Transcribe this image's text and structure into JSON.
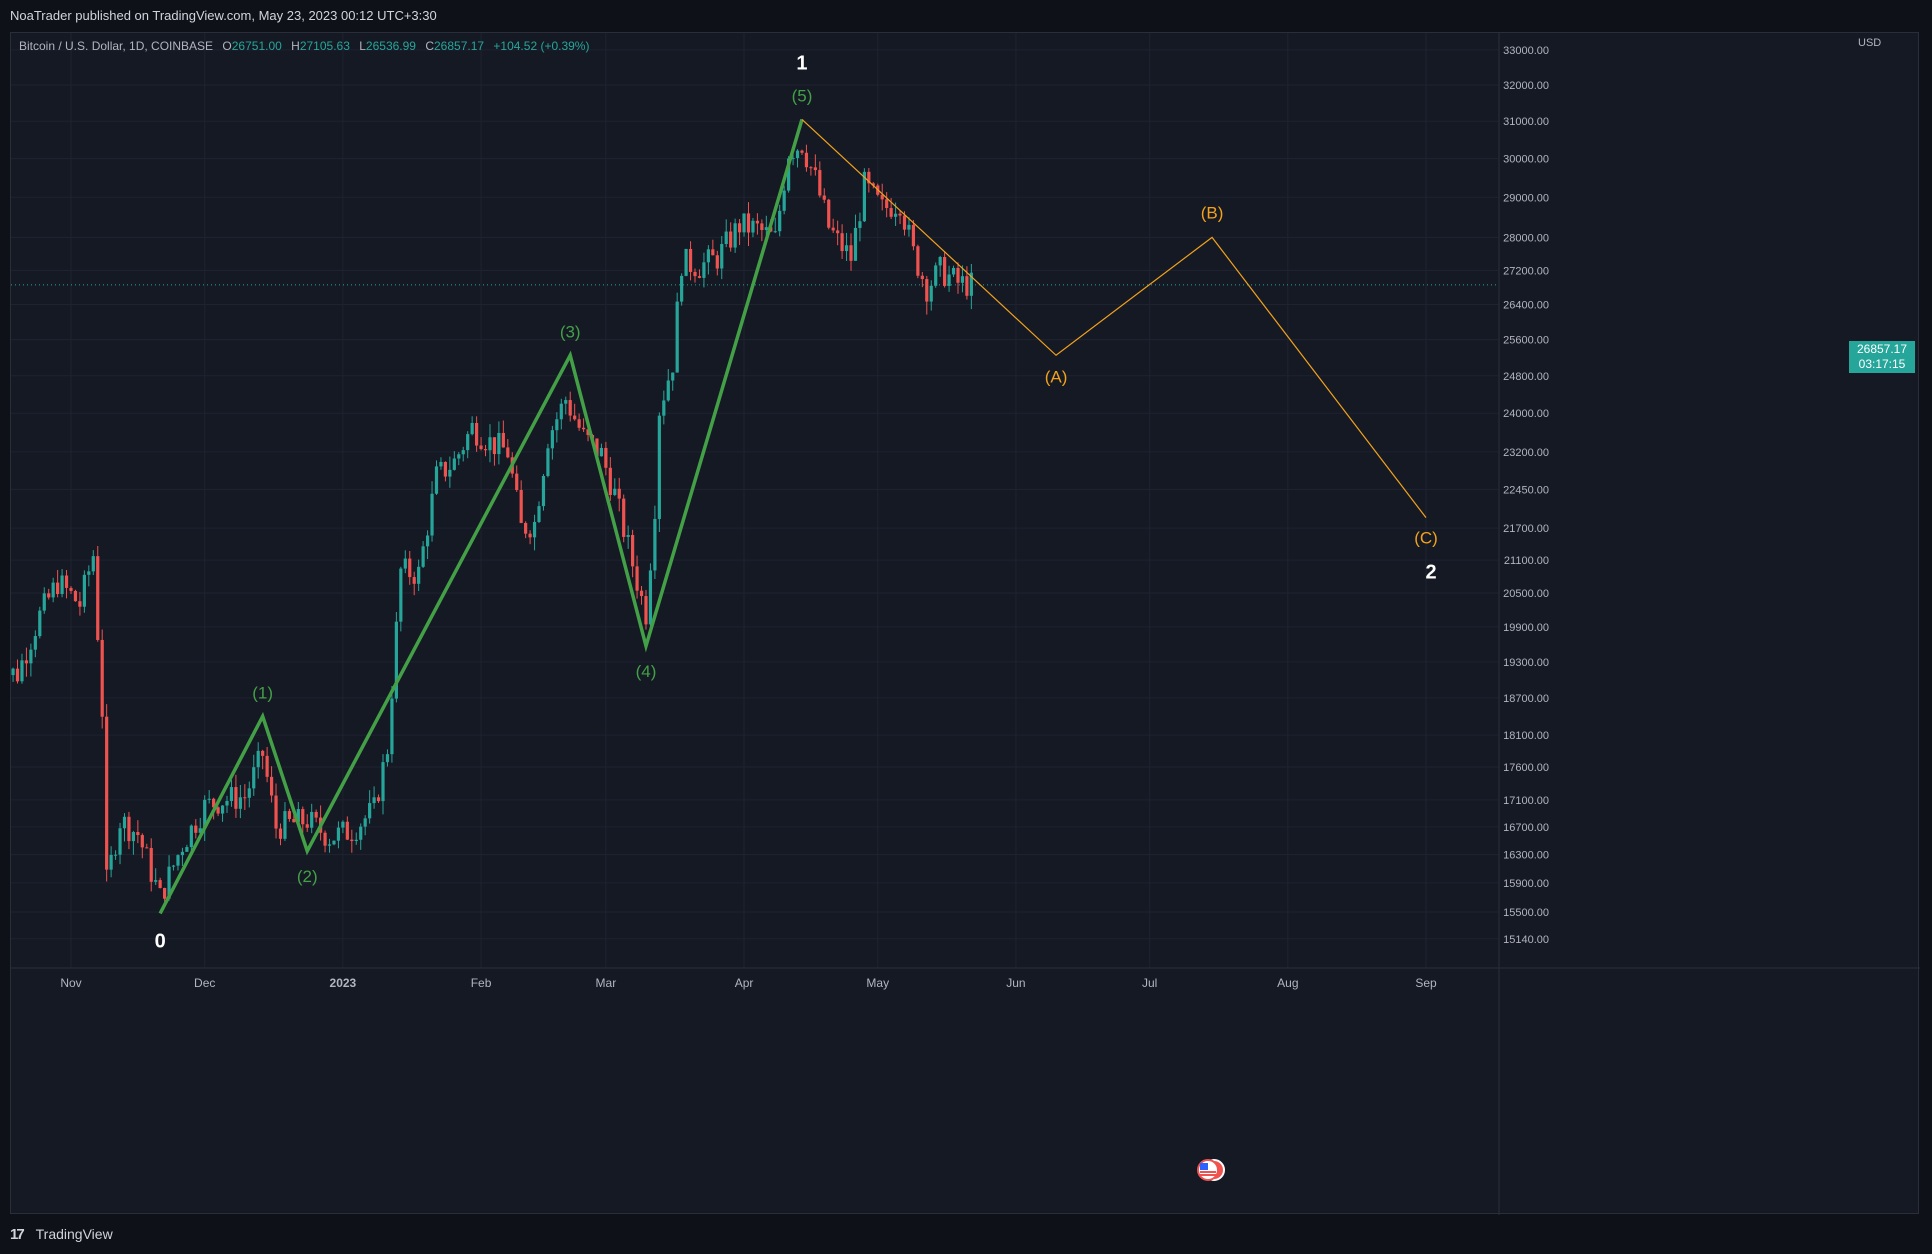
{
  "header": {
    "published": "NoaTrader published on TradingView.com, May 23, 2023 00:12 UTC+3:30"
  },
  "legend": {
    "symbol": "Bitcoin / U.S. Dollar, 1D, COINBASE",
    "o_key": "O",
    "o_val": "26751.00",
    "h_key": "H",
    "h_val": "27105.63",
    "l_key": "L",
    "l_val": "26536.99",
    "c_key": "C",
    "c_val": "26857.17",
    "change": "+104.52 (+0.39%)"
  },
  "price_axis": {
    "currency": "USD",
    "last_price": "26857.17",
    "countdown": "03:17:15"
  },
  "footer": {
    "brand": "TradingView",
    "logo_text": "17"
  },
  "colors": {
    "up": "#26a69a",
    "down": "#ef5350",
    "impulse": "#43a047",
    "correction": "#f2a21c",
    "background": "#151924"
  },
  "chart_data": {
    "type": "candlestick",
    "title": "Bitcoin / U.S. Dollar, 1D, COINBASE",
    "x_tick_labels": [
      "Nov",
      "Dec",
      "2023",
      "Feb",
      "Mar",
      "Apr",
      "May",
      "Jun",
      "Jul",
      "Aug",
      "Sep"
    ],
    "y_tick_labels": [
      "33000.00",
      "32000.00",
      "31000.00",
      "30000.00",
      "29000.00",
      "28000.00",
      "27200.00",
      "26400.00",
      "25600.00",
      "24800.00",
      "24000.00",
      "23200.00",
      "22450.00",
      "21700.00",
      "21100.00",
      "20500.00",
      "19900.00",
      "19300.00",
      "18700.00",
      "18100.00",
      "17600.00",
      "17100.00",
      "16700.00",
      "16300.00",
      "15900.00",
      "15500.00",
      "15140.00"
    ],
    "y_scale": "log",
    "ylim": [
      14900,
      33300
    ],
    "last_price": 26857.17,
    "impulse_waves": [
      {
        "label": "0",
        "date": "2022-11-21",
        "price": 15480
      },
      {
        "label": "(1)",
        "date": "2022-12-14",
        "price": 18400
      },
      {
        "label": "(2)",
        "date": "2022-12-24",
        "price": 16350
      },
      {
        "label": "(3)",
        "date": "2023-02-21",
        "price": 25250
      },
      {
        "label": "(4)",
        "date": "2023-03-10",
        "price": 19570
      },
      {
        "label": "(5)",
        "date": "2023-04-14",
        "price": 31050
      }
    ],
    "wave_degree_labels": [
      {
        "label": "0",
        "date": "2022-11-21"
      },
      {
        "label": "1",
        "date": "2023-04-14"
      },
      {
        "label": "2",
        "date": "2023-09-01"
      }
    ],
    "correction_projection": [
      {
        "label": "",
        "date": "2023-04-14",
        "price": 31050
      },
      {
        "label": "(A)",
        "date": "2023-06-10",
        "price": 25250
      },
      {
        "label": "(B)",
        "date": "2023-07-15",
        "price": 28000
      },
      {
        "label": "(C)",
        "date": "2023-09-01",
        "price": 21900
      }
    ],
    "close_path": [
      [
        "2022-10-15",
        19150
      ],
      [
        "2022-10-20",
        19100
      ],
      [
        "2022-10-25",
        20100
      ],
      [
        "2022-10-29",
        20700
      ],
      [
        "2022-11-03",
        20300
      ],
      [
        "2022-11-06",
        21200
      ],
      [
        "2022-11-08",
        18500
      ],
      [
        "2022-11-09",
        15900
      ],
      [
        "2022-11-12",
        16800
      ],
      [
        "2022-11-16",
        16600
      ],
      [
        "2022-11-21",
        15700
      ],
      [
        "2022-11-26",
        16450
      ],
      [
        "2022-12-01",
        17000
      ],
      [
        "2022-12-05",
        17100
      ],
      [
        "2022-12-10",
        17150
      ],
      [
        "2022-12-14",
        17800
      ],
      [
        "2022-12-17",
        16700
      ],
      [
        "2022-12-24",
        16800
      ],
      [
        "2022-12-29",
        16550
      ],
      [
        "2023-01-03",
        16650
      ],
      [
        "2023-01-08",
        16950
      ],
      [
        "2023-01-11",
        17900
      ],
      [
        "2023-01-14",
        20900
      ],
      [
        "2023-01-18",
        20850
      ],
      [
        "2023-01-22",
        22700
      ],
      [
        "2023-01-26",
        23000
      ],
      [
        "2023-01-30",
        23700
      ],
      [
        "2023-02-03",
        23400
      ],
      [
        "2023-02-07",
        23200
      ],
      [
        "2023-02-10",
        21700
      ],
      [
        "2023-02-13",
        21800
      ],
      [
        "2023-02-16",
        23500
      ],
      [
        "2023-02-20",
        24300
      ],
      [
        "2023-02-24",
        23500
      ],
      [
        "2023-02-28",
        23150
      ],
      [
        "2023-03-03",
        22350
      ],
      [
        "2023-03-09",
        20400
      ],
      [
        "2023-03-10",
        20150
      ],
      [
        "2023-03-12",
        22150
      ],
      [
        "2023-03-13",
        24100
      ],
      [
        "2023-03-16",
        25100
      ],
      [
        "2023-03-18",
        27400
      ],
      [
        "2023-03-22",
        27300
      ],
      [
        "2023-03-26",
        27500
      ],
      [
        "2023-03-31",
        28300
      ],
      [
        "2023-04-04",
        28200
      ],
      [
        "2023-04-08",
        27950
      ],
      [
        "2023-04-11",
        30200
      ],
      [
        "2023-04-14",
        30400
      ],
      [
        "2023-04-17",
        29450
      ],
      [
        "2023-04-20",
        28250
      ],
      [
        "2023-04-22",
        27900
      ],
      [
        "2023-04-25",
        27500
      ],
      [
        "2023-04-28",
        29300
      ],
      [
        "2023-05-02",
        28700
      ],
      [
        "2023-05-06",
        28900
      ],
      [
        "2023-05-09",
        27600
      ],
      [
        "2023-05-12",
        26800
      ],
      [
        "2023-05-15",
        27200
      ],
      [
        "2023-05-19",
        26900
      ],
      [
        "2023-05-22",
        26857
      ]
    ]
  }
}
